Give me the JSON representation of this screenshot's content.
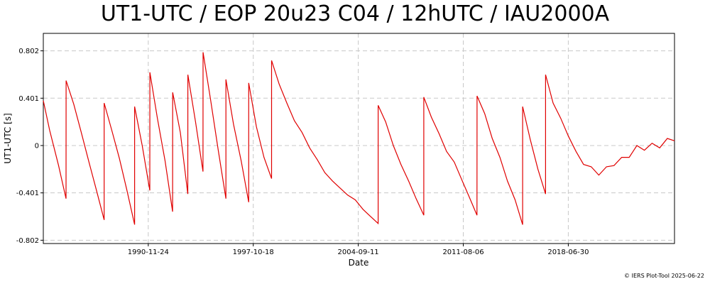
{
  "chart_data": {
    "type": "line",
    "title": "UT1-UTC / EOP 20u23 C04 / 12hUTC / IAU2000A",
    "xlabel": "Date",
    "ylabel": "UT1-UTC [s]",
    "x_ticks": [
      "1990-11-24",
      "1997-10-18",
      "2004-09-11",
      "2011-08-06",
      "2018-06-30"
    ],
    "y_ticks": [
      -0.802,
      -0.401,
      0,
      0.401,
      0.802
    ],
    "xlim": [
      "1984-01-01",
      "2025-06-22"
    ],
    "ylim": [
      -0.83,
      0.95
    ],
    "grid": true,
    "line_color": "#e00000",
    "series": [
      {
        "points": [
          [
            "1984-01-01",
            0.38
          ],
          [
            "1984-06-01",
            0.13
          ],
          [
            "1985-01-01",
            -0.17
          ],
          [
            "1985-06-30",
            -0.45
          ],
          [
            "1985-07-01",
            0.55
          ],
          [
            "1986-01-01",
            0.35
          ],
          [
            "1986-07-01",
            0.11
          ],
          [
            "1987-01-01",
            -0.14
          ],
          [
            "1987-07-01",
            -0.38
          ],
          [
            "1987-12-31",
            -0.63
          ],
          [
            "1988-01-01",
            0.36
          ],
          [
            "1988-07-01",
            0.13
          ],
          [
            "1989-01-01",
            -0.11
          ],
          [
            "1989-07-01",
            -0.38
          ],
          [
            "1989-12-31",
            -0.67
          ],
          [
            "1990-01-01",
            0.33
          ],
          [
            "1990-07-01",
            0.0
          ],
          [
            "1990-12-31",
            -0.38
          ],
          [
            "1991-01-01",
            0.62
          ],
          [
            "1991-07-01",
            0.23
          ],
          [
            "1992-01-01",
            -0.13
          ],
          [
            "1992-06-30",
            -0.56
          ],
          [
            "1992-07-01",
            0.45
          ],
          [
            "1993-01-01",
            0.11
          ],
          [
            "1993-06-30",
            -0.41
          ],
          [
            "1993-07-01",
            0.6
          ],
          [
            "1994-01-01",
            0.2
          ],
          [
            "1994-06-30",
            -0.22
          ],
          [
            "1994-07-01",
            0.79
          ],
          [
            "1995-01-01",
            0.38
          ],
          [
            "1995-07-01",
            -0.04
          ],
          [
            "1995-12-31",
            -0.45
          ],
          [
            "1996-01-01",
            0.56
          ],
          [
            "1996-07-01",
            0.18
          ],
          [
            "1997-01-01",
            -0.13
          ],
          [
            "1997-06-30",
            -0.48
          ],
          [
            "1997-07-01",
            0.53
          ],
          [
            "1998-01-01",
            0.16
          ],
          [
            "1998-07-01",
            -0.1
          ],
          [
            "1998-12-31",
            -0.28
          ],
          [
            "1999-01-01",
            0.72
          ],
          [
            "1999-07-01",
            0.52
          ],
          [
            "2000-01-01",
            0.36
          ],
          [
            "2000-07-01",
            0.21
          ],
          [
            "2001-01-01",
            0.11
          ],
          [
            "2001-07-01",
            -0.02
          ],
          [
            "2002-01-01",
            -0.12
          ],
          [
            "2002-07-01",
            -0.23
          ],
          [
            "2003-01-01",
            -0.3
          ],
          [
            "2003-07-01",
            -0.36
          ],
          [
            "2004-01-01",
            -0.42
          ],
          [
            "2004-07-01",
            -0.46
          ],
          [
            "2005-01-01",
            -0.54
          ],
          [
            "2005-07-01",
            -0.6
          ],
          [
            "2005-12-31",
            -0.66
          ],
          [
            "2006-01-01",
            0.34
          ],
          [
            "2006-07-01",
            0.2
          ],
          [
            "2007-01-01",
            0.0
          ],
          [
            "2007-07-01",
            -0.16
          ],
          [
            "2008-01-01",
            -0.3
          ],
          [
            "2008-07-01",
            -0.45
          ],
          [
            "2008-12-31",
            -0.59
          ],
          [
            "2009-01-01",
            0.41
          ],
          [
            "2009-07-01",
            0.24
          ],
          [
            "2010-01-01",
            0.1
          ],
          [
            "2010-07-01",
            -0.05
          ],
          [
            "2011-01-01",
            -0.14
          ],
          [
            "2011-07-01",
            -0.29
          ],
          [
            "2012-01-01",
            -0.44
          ],
          [
            "2012-06-30",
            -0.59
          ],
          [
            "2012-07-01",
            0.42
          ],
          [
            "2013-01-01",
            0.27
          ],
          [
            "2013-07-01",
            0.06
          ],
          [
            "2014-01-01",
            -0.1
          ],
          [
            "2014-07-01",
            -0.3
          ],
          [
            "2015-01-01",
            -0.46
          ],
          [
            "2015-06-30",
            -0.67
          ],
          [
            "2015-07-01",
            0.33
          ],
          [
            "2016-01-01",
            0.05
          ],
          [
            "2016-07-01",
            -0.2
          ],
          [
            "2016-12-31",
            -0.41
          ],
          [
            "2017-01-01",
            0.6
          ],
          [
            "2017-07-01",
            0.36
          ],
          [
            "2018-01-01",
            0.23
          ],
          [
            "2018-07-01",
            0.08
          ],
          [
            "2019-01-01",
            -0.05
          ],
          [
            "2019-07-01",
            -0.16
          ],
          [
            "2020-01-01",
            -0.18
          ],
          [
            "2020-07-01",
            -0.25
          ],
          [
            "2021-01-01",
            -0.18
          ],
          [
            "2021-07-01",
            -0.17
          ],
          [
            "2022-01-01",
            -0.1
          ],
          [
            "2022-07-01",
            -0.1
          ],
          [
            "2023-01-01",
            0.0
          ],
          [
            "2023-07-01",
            -0.04
          ],
          [
            "2024-01-01",
            0.02
          ],
          [
            "2024-07-01",
            -0.02
          ],
          [
            "2025-01-01",
            0.06
          ],
          [
            "2025-06-22",
            0.04
          ]
        ]
      }
    ]
  },
  "credit": "© IERS Plot-Tool 2025-06-22"
}
